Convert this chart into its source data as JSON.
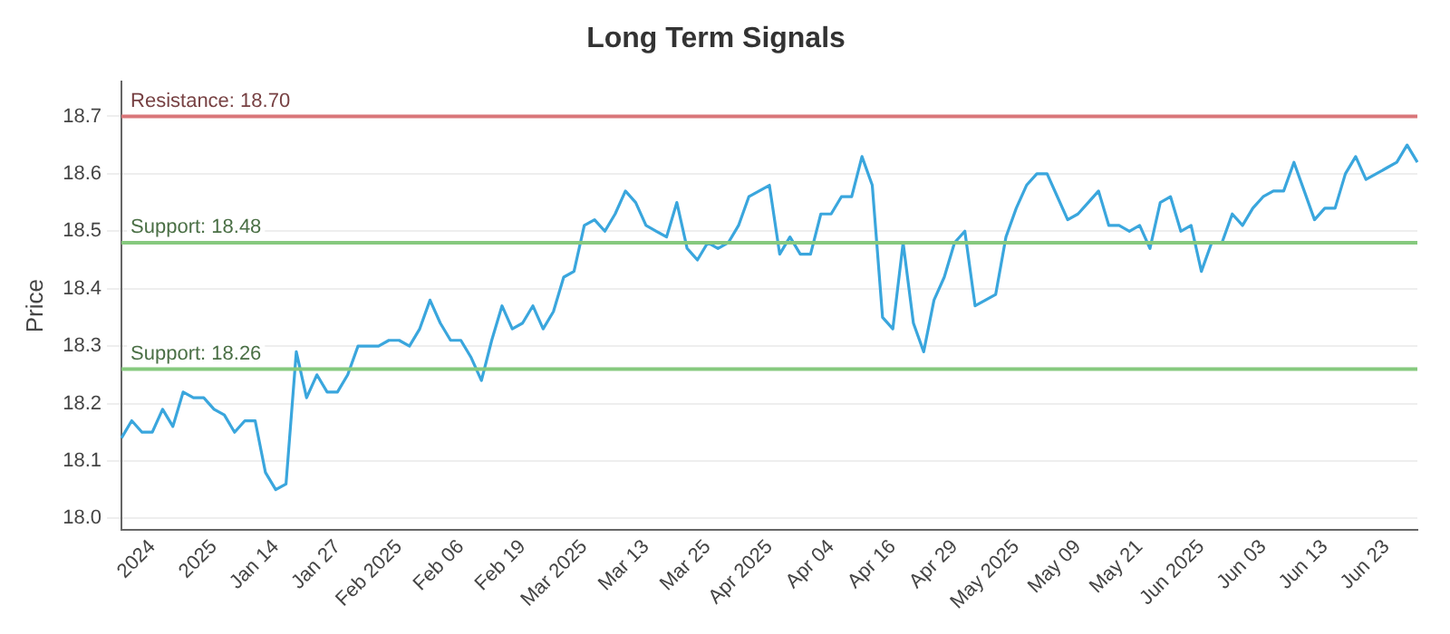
{
  "chart_data": {
    "type": "line",
    "title": "Long Term Signals",
    "ylabel": "Price",
    "categories": [
      null,
      null,
      null,
      "2024",
      null,
      null,
      null,
      null,
      null,
      "2025",
      null,
      null,
      null,
      null,
      null,
      "Jan 14",
      null,
      null,
      null,
      null,
      null,
      "Jan 27",
      null,
      null,
      null,
      null,
      null,
      "Feb 2025",
      null,
      null,
      null,
      null,
      null,
      "Feb 06",
      null,
      null,
      null,
      null,
      null,
      "Feb 19",
      null,
      null,
      null,
      null,
      null,
      "Mar 2025",
      null,
      null,
      null,
      null,
      null,
      "Mar 13",
      null,
      null,
      null,
      null,
      null,
      "Mar 25",
      null,
      null,
      null,
      null,
      null,
      "Apr 2025",
      null,
      null,
      null,
      null,
      null,
      "Apr 04",
      null,
      null,
      null,
      null,
      null,
      "Apr 16",
      null,
      null,
      null,
      null,
      null,
      "Apr 29",
      null,
      null,
      null,
      null,
      null,
      "May 2025",
      null,
      null,
      null,
      null,
      null,
      "May 09",
      null,
      null,
      null,
      null,
      null,
      "May 21",
      null,
      null,
      null,
      null,
      null,
      "Jun 2025",
      null,
      null,
      null,
      null,
      null,
      "Jun 03",
      null,
      null,
      null,
      null,
      null,
      "Jun 13",
      null,
      null,
      null,
      null,
      null,
      "Jun 23",
      null,
      null,
      null
    ],
    "series": [
      {
        "color": "#3aa6dd",
        "values": [
          18.14,
          18.17,
          18.15,
          18.15,
          18.19,
          18.16,
          18.22,
          18.21,
          18.21,
          18.19,
          18.18,
          18.15,
          18.17,
          18.17,
          18.08,
          18.05,
          18.06,
          18.29,
          18.21,
          18.25,
          18.22,
          18.22,
          18.25,
          18.3,
          18.3,
          18.3,
          18.31,
          18.31,
          18.3,
          18.33,
          18.38,
          18.34,
          18.31,
          18.31,
          18.28,
          18.24,
          18.31,
          18.37,
          18.33,
          18.34,
          18.37,
          18.33,
          18.36,
          18.42,
          18.43,
          18.51,
          18.52,
          18.5,
          18.53,
          18.57,
          18.55,
          18.51,
          18.5,
          18.49,
          18.55,
          18.47,
          18.45,
          18.48,
          18.47,
          18.48,
          18.51,
          18.56,
          18.57,
          18.58,
          18.46,
          18.49,
          18.46,
          18.46,
          18.53,
          18.53,
          18.56,
          18.56,
          18.63,
          18.58,
          18.35,
          18.33,
          18.48,
          18.34,
          18.29,
          18.38,
          18.42,
          18.48,
          18.5,
          18.37,
          18.38,
          18.39,
          18.49,
          18.54,
          18.58,
          18.6,
          18.6,
          18.56,
          18.52,
          18.53,
          18.55,
          18.57,
          18.51,
          18.51,
          18.5,
          18.51,
          18.47,
          18.55,
          18.56,
          18.5,
          18.51,
          18.43,
          18.48,
          18.48,
          18.53,
          18.51,
          18.54,
          18.56,
          18.57,
          18.57,
          18.62,
          18.57,
          18.52,
          18.54,
          18.54,
          18.6,
          18.63,
          18.59,
          18.6,
          18.61,
          18.62,
          18.65,
          18.62
        ]
      }
    ],
    "ylim": [
      17.98,
      18.76
    ],
    "yticks": [
      {
        "value": 18,
        "label": "18.0"
      },
      18.1,
      18.2,
      18.3,
      18.4,
      18.5,
      18.6,
      18.7
    ],
    "grid": "y",
    "legend": false,
    "marker": "none",
    "line_style": "solid",
    "ref_lines": [
      {
        "axis": "y",
        "value": 18.7,
        "label": "Resistance: 18.70",
        "color": "#d9777a"
      },
      {
        "axis": "y",
        "value": 18.48,
        "label": "Support: 18.48",
        "color": "#86c97e"
      },
      {
        "axis": "y",
        "value": 18.26,
        "label": "Support: 18.26",
        "color": "#86c97e"
      }
    ]
  }
}
